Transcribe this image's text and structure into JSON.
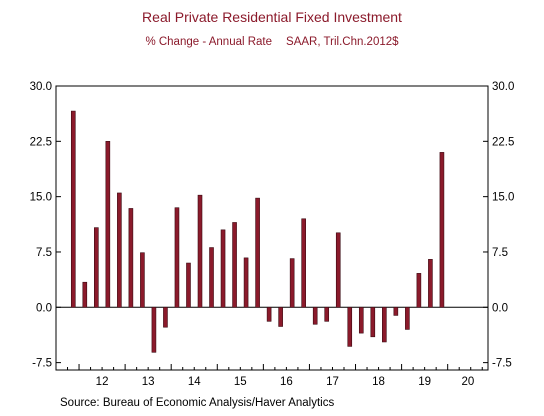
{
  "chart_data": {
    "type": "bar",
    "title": "Real Private Residential Fixed Investment",
    "subtitle_left": "% Change - Annual Rate",
    "subtitle_right": "SAAR, Tril.Chn.2012$",
    "source": "Source:  Bureau of Economic Analysis/Haver Analytics",
    "ylim": [
      -8.5,
      30.0
    ],
    "yticks": [
      30.0,
      22.5,
      15.0,
      7.5,
      0.0,
      -7.5
    ],
    "ytick_labels": [
      "30.0",
      "22.5",
      "15.0",
      "7.5",
      "0.0",
      "-7.5"
    ],
    "xlim": [
      2011.5,
      2020.875
    ],
    "year_ticks": [
      12,
      13,
      14,
      15,
      16,
      17,
      18,
      19,
      20
    ],
    "bar_color": "#8b1a2b",
    "grid": false,
    "legend": "none",
    "series": [
      {
        "x": [
          2011.875,
          2012.125,
          2012.375,
          2012.625,
          2012.875,
          2013.125,
          2013.375,
          2013.625,
          2013.875,
          2014.125,
          2014.375,
          2014.625,
          2014.875,
          2015.125,
          2015.375,
          2015.625,
          2015.875,
          2016.125,
          2016.375,
          2016.625,
          2016.875,
          2017.125,
          2017.375,
          2017.625,
          2017.875,
          2018.125,
          2018.375,
          2018.625,
          2018.875,
          2019.125,
          2019.375,
          2019.625,
          2019.875,
          2020.125
        ],
        "values": [
          26.6,
          3.4,
          10.8,
          22.5,
          15.5,
          13.4,
          7.4,
          -6.1,
          -2.7,
          13.5,
          6.0,
          15.2,
          8.1,
          10.5,
          11.5,
          6.7,
          14.8,
          -1.9,
          -2.6,
          6.6,
          12.0,
          -2.3,
          -1.9,
          10.1,
          -5.3,
          -3.5,
          -4.0,
          -4.7,
          -1.1,
          -3.0,
          4.6,
          6.5,
          21.0,
          null
        ]
      }
    ]
  }
}
